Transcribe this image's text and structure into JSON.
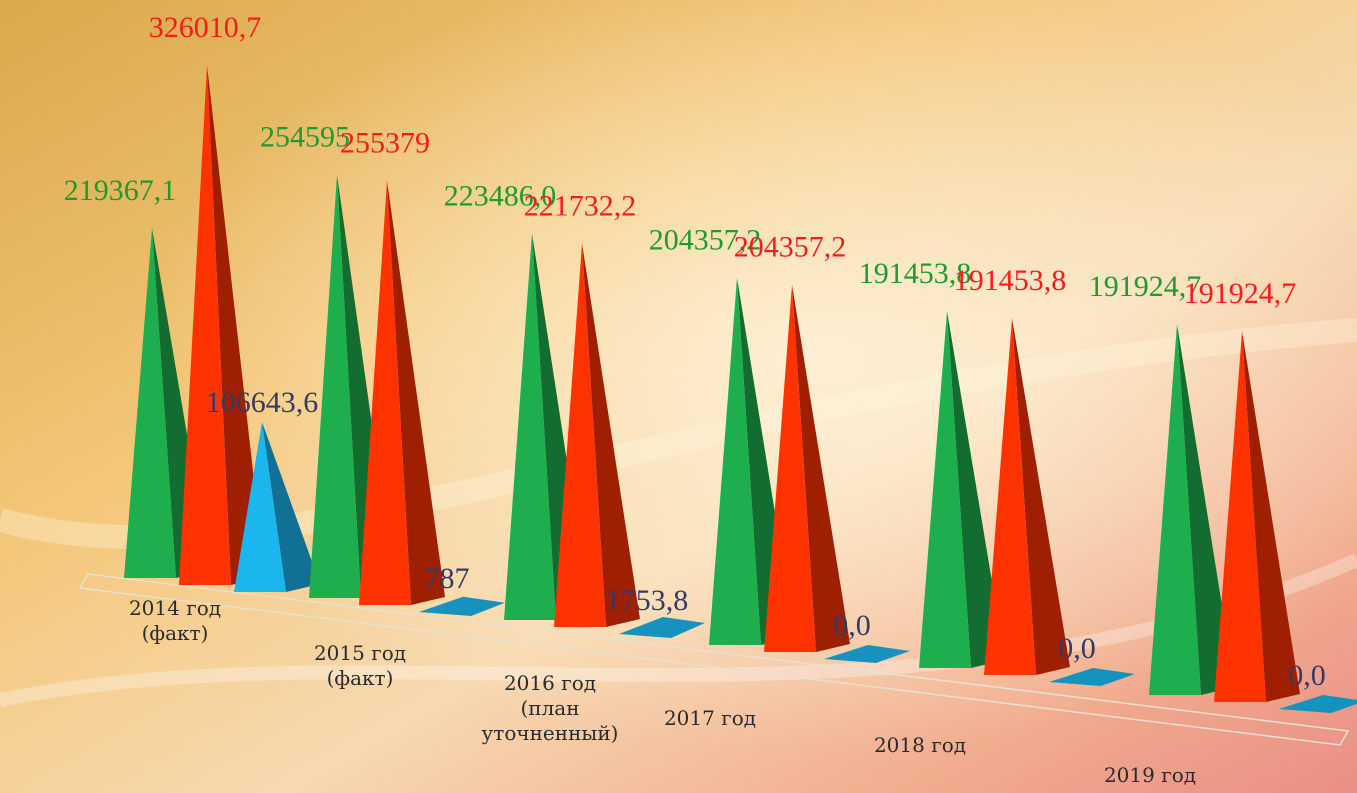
{
  "chart_data": {
    "type": "pyramid3d",
    "categories": [
      [
        "2014 год",
        "(факт)"
      ],
      [
        "2015 год",
        "(факт)"
      ],
      [
        "2016 год",
        "(план",
        "уточненный)"
      ],
      [
        "2017 год"
      ],
      [
        "2018 год"
      ],
      [
        "2019 год"
      ]
    ],
    "series": [
      {
        "color": "#1fae4e",
        "label_color": "#1f9a2e",
        "values": [
          219367.1,
          254595,
          223486.0,
          204357.2,
          191453.8,
          191924.7
        ],
        "value_labels": [
          "219367,1",
          "254595",
          "223486,0",
          "204357,2",
          "191453,8",
          "191924,7"
        ]
      },
      {
        "color": "#ff3300",
        "label_color": "#ff1a1a",
        "values": [
          326010.7,
          255379,
          221732.2,
          204357.2,
          191453.8,
          191924.7
        ],
        "value_labels": [
          "326010,7",
          "255379",
          "221732,2",
          "204357,2",
          "191453,8",
          "191924,7"
        ]
      },
      {
        "color": "#1cb6ee",
        "label_color": "#333a66",
        "values": [
          106643.6,
          787,
          1753.8,
          0,
          0,
          0
        ],
        "value_labels": [
          "106643,6",
          "787",
          "1753,8",
          "0,0",
          "0,0",
          "0,0"
        ]
      }
    ]
  }
}
